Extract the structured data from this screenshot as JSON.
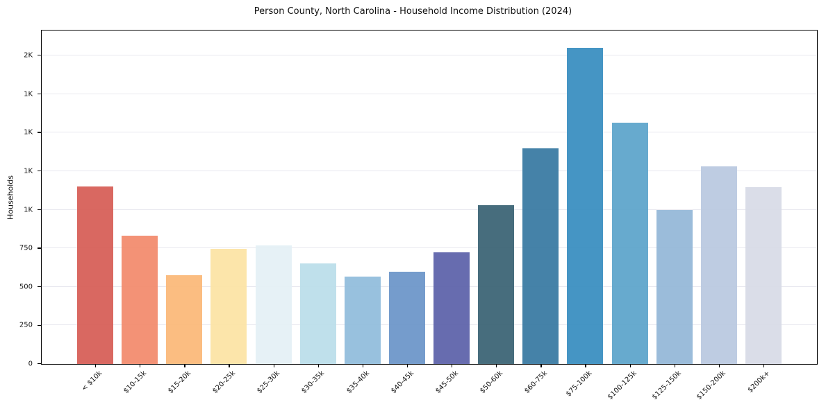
{
  "chart_data": {
    "type": "bar",
    "title": "Person County, North Carolina - Household Income Distribution (2024)",
    "ylabel": "Households",
    "xlabel": "",
    "categories": [
      "< $10k",
      "$10-15k",
      "$15-20k",
      "$20-25k",
      "$25-30k",
      "$30-35k",
      "$35-40k",
      "$40-45k",
      "$45-50k",
      "$50-60k",
      "$60-75k",
      "$75-100k",
      "$100-125k",
      "$125-150k",
      "$150-200k",
      "$200k+"
    ],
    "values": [
      1150,
      830,
      575,
      745,
      770,
      650,
      565,
      600,
      725,
      1030,
      1400,
      2050,
      1565,
      1000,
      1280,
      1145
    ],
    "bar_colors": [
      "#d65c55",
      "#f28a6c",
      "#fbb877",
      "#fce3a4",
      "#e4f0f5",
      "#badee9",
      "#90bcdb",
      "#6b94c8",
      "#5b61a9",
      "#396273",
      "#3779a1",
      "#378dc0",
      "#5ba4ca",
      "#93b7d7",
      "#b9c8e0",
      "#d7dae6"
    ],
    "y_ticks": [
      {
        "value": 0,
        "label": "0"
      },
      {
        "value": 250,
        "label": "250"
      },
      {
        "value": 500,
        "label": "500"
      },
      {
        "value": 750,
        "label": "750"
      },
      {
        "value": 1000,
        "label": "1K"
      },
      {
        "value": 1250,
        "label": "1K"
      },
      {
        "value": 1500,
        "label": "1K"
      },
      {
        "value": 1750,
        "label": "1K"
      },
      {
        "value": 2000,
        "label": "2K"
      }
    ],
    "ylim": [
      0,
      2160
    ],
    "grid": true,
    "legend": "none",
    "background_color": "#ffffff",
    "axis_color": "#000000",
    "grid_color": "#e7e7ee"
  }
}
